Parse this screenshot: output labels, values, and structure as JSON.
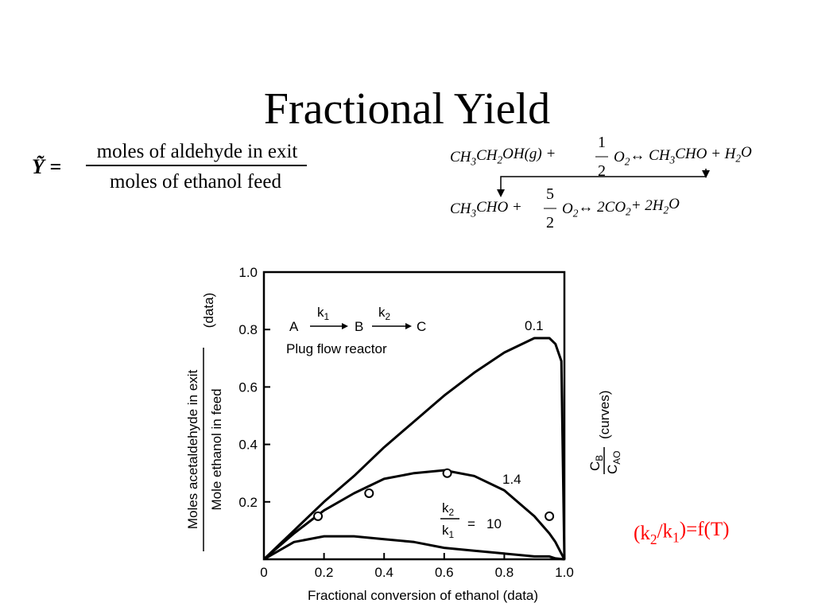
{
  "title": "Fractional Yield",
  "yield_definition": {
    "symbol": "Ỹ =",
    "numerator": "moles of aldehyde in exit",
    "denominator": "moles of ethanol feed"
  },
  "equations": [
    {
      "left": [
        "CH",
        "3",
        "CH",
        "2",
        "OH(g) +"
      ],
      "fraction": {
        "num": "1",
        "den": "2"
      },
      "right": [
        "O",
        "2",
        "↔ CH",
        "3",
        "CHO + H",
        "2",
        "O"
      ]
    },
    {
      "left": [
        "CH",
        "3",
        "CHO +"
      ],
      "fraction": {
        "num": "5",
        "den": "2"
      },
      "right": [
        "O",
        "2",
        "↔ 2CO",
        "2",
        "+ 2H",
        "2",
        "O"
      ]
    }
  ],
  "note": [
    "(k",
    "2",
    "/k",
    "1",
    ")=f(T)"
  ],
  "chart_data": {
    "type": "line",
    "x_label": "Fractional conversion of ethanol (data)",
    "y_label": {
      "numerator": "Moles acetaldehyde in exit",
      "denominator": "Mole ethanol in feed",
      "suffix": "(data)"
    },
    "y2_label": {
      "numerator": [
        "C",
        "B"
      ],
      "denominator": [
        "C",
        "AO"
      ],
      "suffix": "(curves)"
    },
    "inset": {
      "a": "A",
      "k1": [
        "k",
        "1"
      ],
      "b": "B",
      "k2": [
        "k",
        "2"
      ],
      "c": "C",
      "caption": "Plug flow reactor"
    },
    "ratio_label": {
      "numerator": [
        "k",
        "2"
      ],
      "denominator": [
        "k",
        "1"
      ],
      "equals": "="
    },
    "xlim": [
      0,
      1
    ],
    "ylim": [
      0,
      1
    ],
    "xticks": [
      0,
      0.2,
      0.4,
      0.6,
      0.8,
      {
        "value": 1,
        "label": "1.0"
      }
    ],
    "yticks": [
      0.2,
      0.4,
      0.6,
      0.8,
      {
        "value": 1,
        "label": "1.0"
      }
    ],
    "x": [
      0,
      0.1,
      0.2,
      0.3,
      0.4,
      0.5,
      0.6,
      0.7,
      0.8,
      0.9,
      0.95,
      0.97,
      0.99,
      1
    ],
    "series": [
      {
        "name": "0.1",
        "color": "#000000",
        "values": [
          0,
          0.1,
          0.2,
          0.29,
          0.39,
          0.48,
          0.57,
          0.65,
          0.72,
          0.77,
          0.77,
          0.75,
          0.69,
          0
        ]
      },
      {
        "name": "1.4",
        "color": "#000000",
        "values": [
          0,
          0.09,
          0.17,
          0.23,
          0.28,
          0.3,
          0.31,
          0.29,
          0.24,
          0.15,
          0.09,
          0.06,
          0.02,
          0
        ]
      },
      {
        "name": "10",
        "color": "#000000",
        "values": [
          0,
          0.06,
          0.08,
          0.08,
          0.07,
          0.06,
          0.04,
          0.03,
          0.02,
          0.01,
          0.01,
          0.003,
          0.001,
          0
        ]
      },
      {
        "color": "#000000",
        "marker": "circle",
        "x": [
          0.18,
          0.35,
          0.61,
          0.95
        ],
        "values": [
          0.15,
          0.23,
          0.3,
          0.15
        ]
      }
    ]
  }
}
